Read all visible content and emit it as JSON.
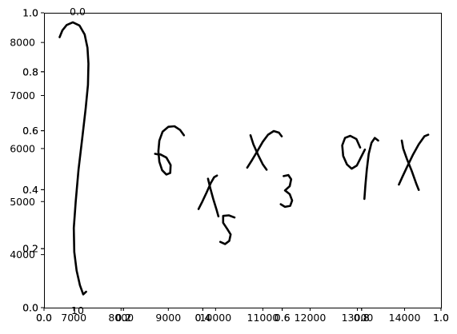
{
  "chart_data": {
    "type": "line",
    "title": "",
    "xlabel": "",
    "ylabel": "",
    "grid": false,
    "legend": "none",
    "ink_color": "#000000",
    "overlapping_axes": [
      {
        "x_ticks": [
          "0.0",
          "0.2",
          "0.4",
          "0.6",
          "0.8",
          "1.0"
        ],
        "y_ticks": [
          "0.0",
          "0.2",
          "0.4",
          "0.6",
          "0.8",
          "1.0"
        ],
        "xlim": [
          0,
          1
        ],
        "ylim": [
          0,
          1
        ]
      },
      {
        "x_ticks": [
          "0.0",
          "0.2",
          "0.4",
          "0.6",
          "0.8",
          "1.0"
        ],
        "y_ticks": [
          "0.0",
          "0.2",
          "0.4",
          "0.6",
          "0.8",
          "1.0"
        ],
        "xlim": [
          0,
          1
        ],
        "ylim": [
          0,
          1
        ]
      },
      {
        "x_ticks": [
          "7000",
          "8000",
          "9000",
          "10000",
          "11000",
          "12000",
          "13000",
          "14000"
        ],
        "x_tick_values": [
          7000,
          8000,
          9000,
          10000,
          11000,
          12000,
          13000,
          14000
        ],
        "y_ticks": [
          "4000",
          "5000",
          "6000",
          "7000",
          "8000"
        ],
        "y_tick_values": [
          4000,
          5000,
          6000,
          7000,
          8000
        ],
        "xlim": [
          6370,
          14770
        ],
        "ylim": [
          3000,
          8560
        ]
      }
    ],
    "fragment_labels": {
      "top": "0.0",
      "bottom": "10"
    },
    "handwriting_strokes": [
      {
        "name": "integral",
        "points": [
          [
            6700,
            8100
          ],
          [
            6760,
            8230
          ],
          [
            6850,
            8330
          ],
          [
            6980,
            8380
          ],
          [
            7120,
            8320
          ],
          [
            7230,
            8150
          ],
          [
            7290,
            7900
          ],
          [
            7310,
            7600
          ],
          [
            7300,
            7200
          ],
          [
            7250,
            6750
          ],
          [
            7180,
            6200
          ],
          [
            7100,
            5600
          ],
          [
            7040,
            5000
          ],
          [
            7000,
            4500
          ],
          [
            7010,
            4050
          ],
          [
            7060,
            3700
          ],
          [
            7130,
            3420
          ],
          [
            7200,
            3250
          ],
          [
            7260,
            3300
          ]
        ]
      },
      {
        "name": "six",
        "points": [
          [
            9330,
            6250
          ],
          [
            9250,
            6350
          ],
          [
            9130,
            6420
          ],
          [
            9000,
            6410
          ],
          [
            8880,
            6320
          ],
          [
            8810,
            6150
          ],
          [
            8790,
            5950
          ],
          [
            8810,
            5750
          ],
          [
            8870,
            5590
          ],
          [
            8960,
            5510
          ],
          [
            9040,
            5540
          ],
          [
            9050,
            5690
          ],
          [
            8960,
            5830
          ],
          [
            8830,
            5890
          ]
        ]
      },
      {
        "name": "x-one-a",
        "points": [
          [
            8720,
            5900
          ],
          [
            8780,
            5890
          ]
        ]
      },
      {
        "name": "x-one-b",
        "points": [
          [
            9840,
            5430
          ],
          [
            9890,
            5250
          ],
          [
            9950,
            5050
          ],
          [
            10020,
            4850
          ],
          [
            10060,
            4720
          ]
        ]
      },
      {
        "name": "x-one-c",
        "points": [
          [
            9640,
            4860
          ],
          [
            9720,
            5000
          ],
          [
            9810,
            5170
          ],
          [
            9900,
            5350
          ],
          [
            9970,
            5460
          ],
          [
            10030,
            5490
          ]
        ]
      },
      {
        "name": "sub-five",
        "points": [
          [
            10400,
            4700
          ],
          [
            10280,
            4740
          ],
          [
            10160,
            4730
          ],
          [
            10160,
            4600
          ],
          [
            10250,
            4480
          ],
          [
            10320,
            4380
          ],
          [
            10290,
            4260
          ],
          [
            10200,
            4200
          ],
          [
            10100,
            4240
          ]
        ]
      },
      {
        "name": "x-two-a",
        "points": [
          [
            10740,
            6250
          ],
          [
            10800,
            6080
          ],
          [
            10900,
            5880
          ],
          [
            11000,
            5700
          ],
          [
            11080,
            5600
          ]
        ]
      },
      {
        "name": "x-two-b",
        "points": [
          [
            10670,
            5640
          ],
          [
            10770,
            5780
          ],
          [
            10890,
            5960
          ],
          [
            11000,
            6130
          ],
          [
            11110,
            6260
          ],
          [
            11230,
            6330
          ],
          [
            11340,
            6300
          ],
          [
            11400,
            6230
          ]
        ]
      },
      {
        "name": "sub-three",
        "points": [
          [
            11440,
            5480
          ],
          [
            11540,
            5500
          ],
          [
            11600,
            5420
          ],
          [
            11570,
            5290
          ],
          [
            11470,
            5210
          ],
          [
            11570,
            5140
          ],
          [
            11620,
            5020
          ],
          [
            11580,
            4920
          ],
          [
            11470,
            4900
          ],
          [
            11380,
            4950
          ]
        ]
      },
      {
        "name": "nine",
        "points": [
          [
            13060,
            6020
          ],
          [
            12980,
            6180
          ],
          [
            12850,
            6240
          ],
          [
            12740,
            6200
          ],
          [
            12680,
            6060
          ],
          [
            12700,
            5860
          ],
          [
            12780,
            5700
          ],
          [
            12880,
            5620
          ],
          [
            12990,
            5680
          ],
          [
            13080,
            5840
          ],
          [
            13160,
            5980
          ]
        ]
      },
      {
        "name": "nine-tail",
        "points": [
          [
            13440,
            6150
          ],
          [
            13370,
            6200
          ],
          [
            13300,
            6110
          ],
          [
            13240,
            5900
          ],
          [
            13200,
            5600
          ],
          [
            13170,
            5300
          ],
          [
            13150,
            5050
          ]
        ]
      },
      {
        "name": "x-three-a",
        "points": [
          [
            13940,
            6150
          ],
          [
            13970,
            6000
          ],
          [
            14050,
            5800
          ],
          [
            14150,
            5580
          ],
          [
            14250,
            5330
          ],
          [
            14300,
            5220
          ]
        ]
      },
      {
        "name": "x-three-b",
        "points": [
          [
            13880,
            5320
          ],
          [
            13950,
            5460
          ],
          [
            14050,
            5650
          ],
          [
            14180,
            5890
          ],
          [
            14300,
            6080
          ],
          [
            14420,
            6230
          ],
          [
            14500,
            6260
          ]
        ]
      }
    ]
  }
}
